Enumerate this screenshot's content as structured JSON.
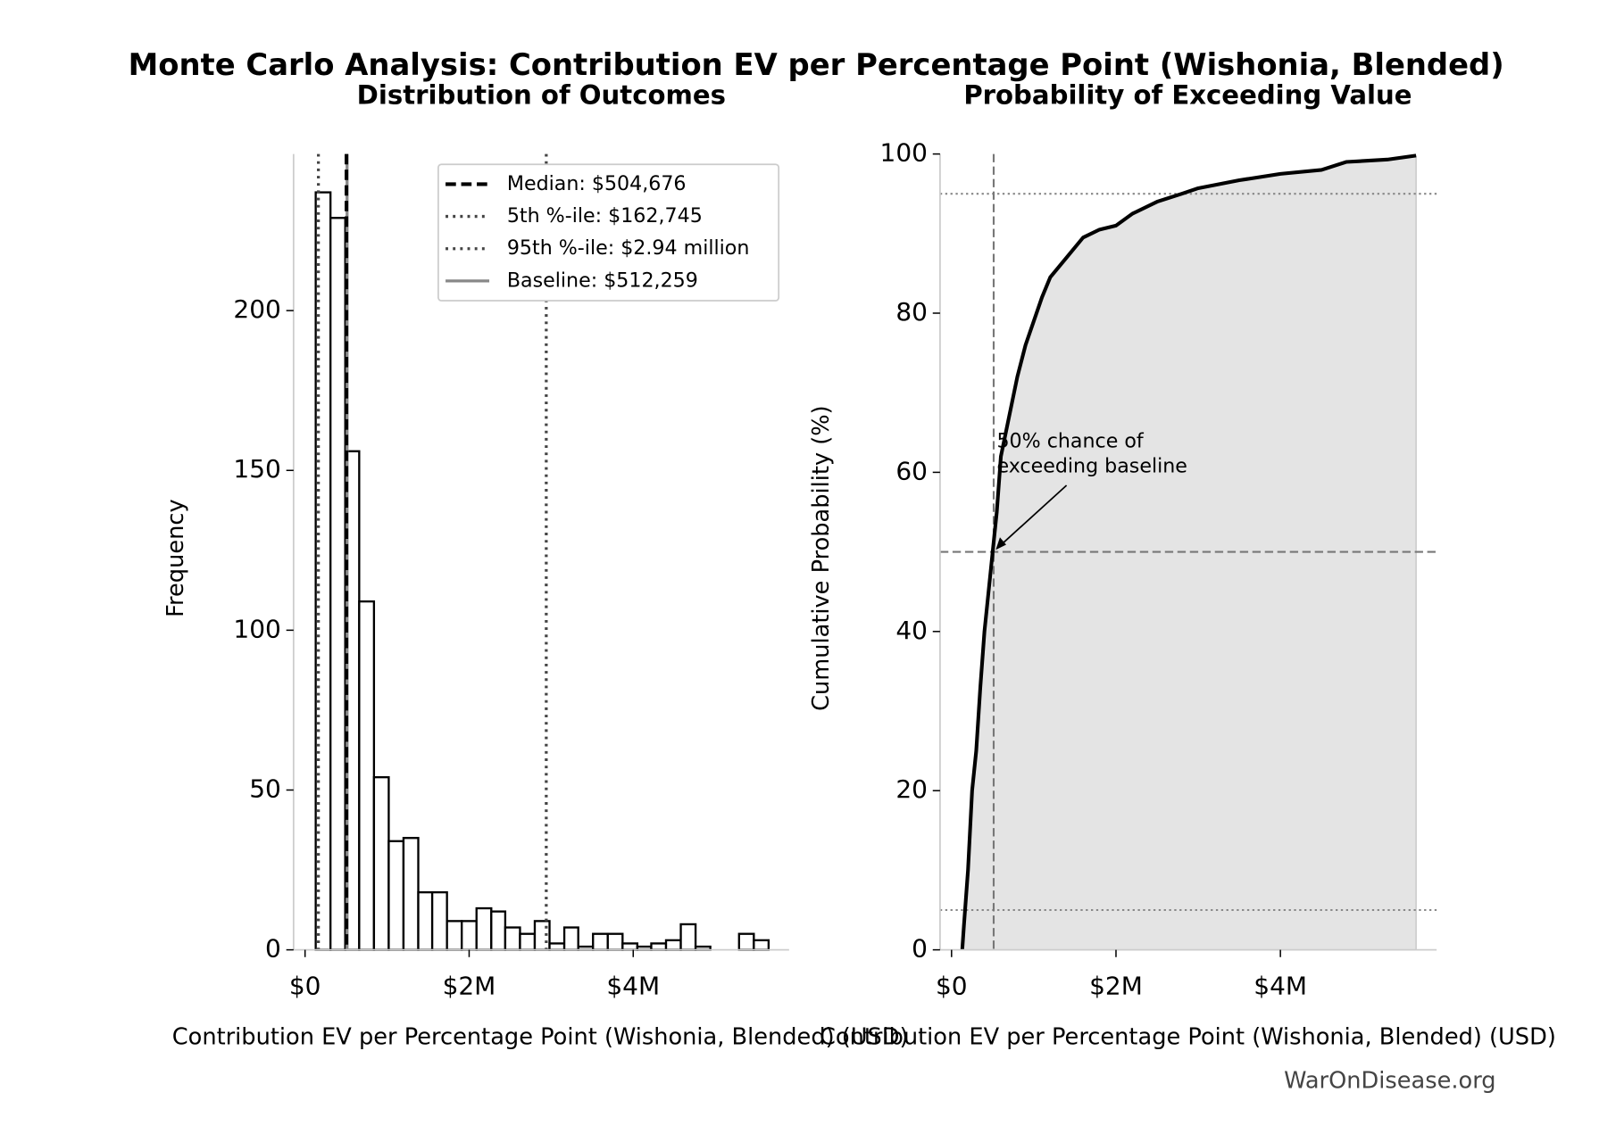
{
  "suptitle": "Monte Carlo Analysis: Contribution EV per Percentage Point (Wishonia, Blended)",
  "footer": "WarOnDisease.org",
  "chart_data": [
    {
      "type": "histogram",
      "title": "Distribution of Outcomes",
      "xlabel": "Contribution EV per Percentage Point (Wishonia, Blended) (USD)",
      "ylabel": "Frequency",
      "bins": [
        130000,
        310000,
        490000,
        660000,
        840000,
        1020000,
        1200000,
        1380000,
        1550000,
        1730000,
        1910000,
        2090000,
        2270000,
        2440000,
        2620000,
        2800000,
        2980000,
        3160000,
        3330000,
        3510000,
        3690000,
        3870000,
        4050000,
        4220000,
        4400000,
        4580000,
        4760000,
        4940000,
        5110000,
        5290000,
        5470000,
        5650000
      ],
      "values": [
        237,
        229,
        156,
        109,
        54,
        34,
        35,
        18,
        18,
        9,
        9,
        13,
        12,
        7,
        5,
        9,
        2,
        7,
        1,
        5,
        5,
        2,
        1,
        2,
        3,
        8,
        1,
        0,
        0,
        5,
        3
      ],
      "color": "#ffffff",
      "edgecolor": "#000000",
      "xlim": [
        -140000,
        5900000
      ],
      "ylim": [
        0,
        249
      ],
      "xticks": [
        {
          "value": 0,
          "label": "$0"
        },
        {
          "value": 2000000,
          "label": "$2M"
        },
        {
          "value": 4000000,
          "label": "$4M"
        }
      ],
      "yticks": [
        0,
        50,
        100,
        150,
        200
      ],
      "legend": "upper right",
      "vlines": [
        {
          "label": "Median: $504,676",
          "value": 504676,
          "style": "dashed",
          "color": "#000000"
        },
        {
          "label": "5th %-ile: $162,745",
          "value": 162745,
          "style": "dotted",
          "color": "#444444"
        },
        {
          "label": "95th %-ile: $2.94 million",
          "value": 2940000,
          "style": "dotted",
          "color": "#444444"
        },
        {
          "label": "Baseline: $512,259",
          "value": 512259,
          "style": "solid",
          "color": "#888888"
        }
      ]
    },
    {
      "type": "line",
      "title": "Probability of Exceeding Value",
      "xlabel": "Contribution EV per Percentage Point (Wishonia, Blended) (USD)",
      "ylabel": "Cumulative Probability (%)",
      "x": [
        130000,
        150000,
        200000,
        250000,
        300000,
        350000,
        400000,
        450000,
        500000,
        550000,
        600000,
        700000,
        800000,
        900000,
        1000000,
        1100000,
        1200000,
        1400000,
        1600000,
        1800000,
        2000000,
        2200000,
        2500000,
        2800000,
        3000000,
        3500000,
        4000000,
        4500000,
        4800000,
        5300000,
        5650000
      ],
      "values": [
        0,
        3,
        10,
        20,
        25,
        33,
        40,
        45,
        50,
        55,
        62,
        67,
        72,
        76,
        79,
        82,
        84.5,
        87,
        89.5,
        90.5,
        91,
        92.5,
        94,
        95,
        95.7,
        96.7,
        97.5,
        98,
        99,
        99.3,
        99.8
      ],
      "color": "#000000",
      "fill": "#e4e4e4",
      "xlim": [
        -140000,
        5900000
      ],
      "ylim": [
        0,
        100
      ],
      "xticks": [
        {
          "value": 0,
          "label": "$0"
        },
        {
          "value": 2000000,
          "label": "$2M"
        },
        {
          "value": 4000000,
          "label": "$4M"
        }
      ],
      "yticks": [
        0,
        20,
        40,
        60,
        80,
        100
      ],
      "hlines": [
        {
          "value": 50,
          "style": "dashed",
          "color": "#777777"
        },
        {
          "value": 5,
          "style": "dotted",
          "color": "#888888"
        },
        {
          "value": 95,
          "style": "dotted",
          "color": "#888888"
        }
      ],
      "vlines": [
        {
          "value": 512259,
          "style": "dashed",
          "color": "#777777"
        }
      ],
      "annotation": [
        "50% chance of",
        "exceeding baseline"
      ]
    }
  ]
}
